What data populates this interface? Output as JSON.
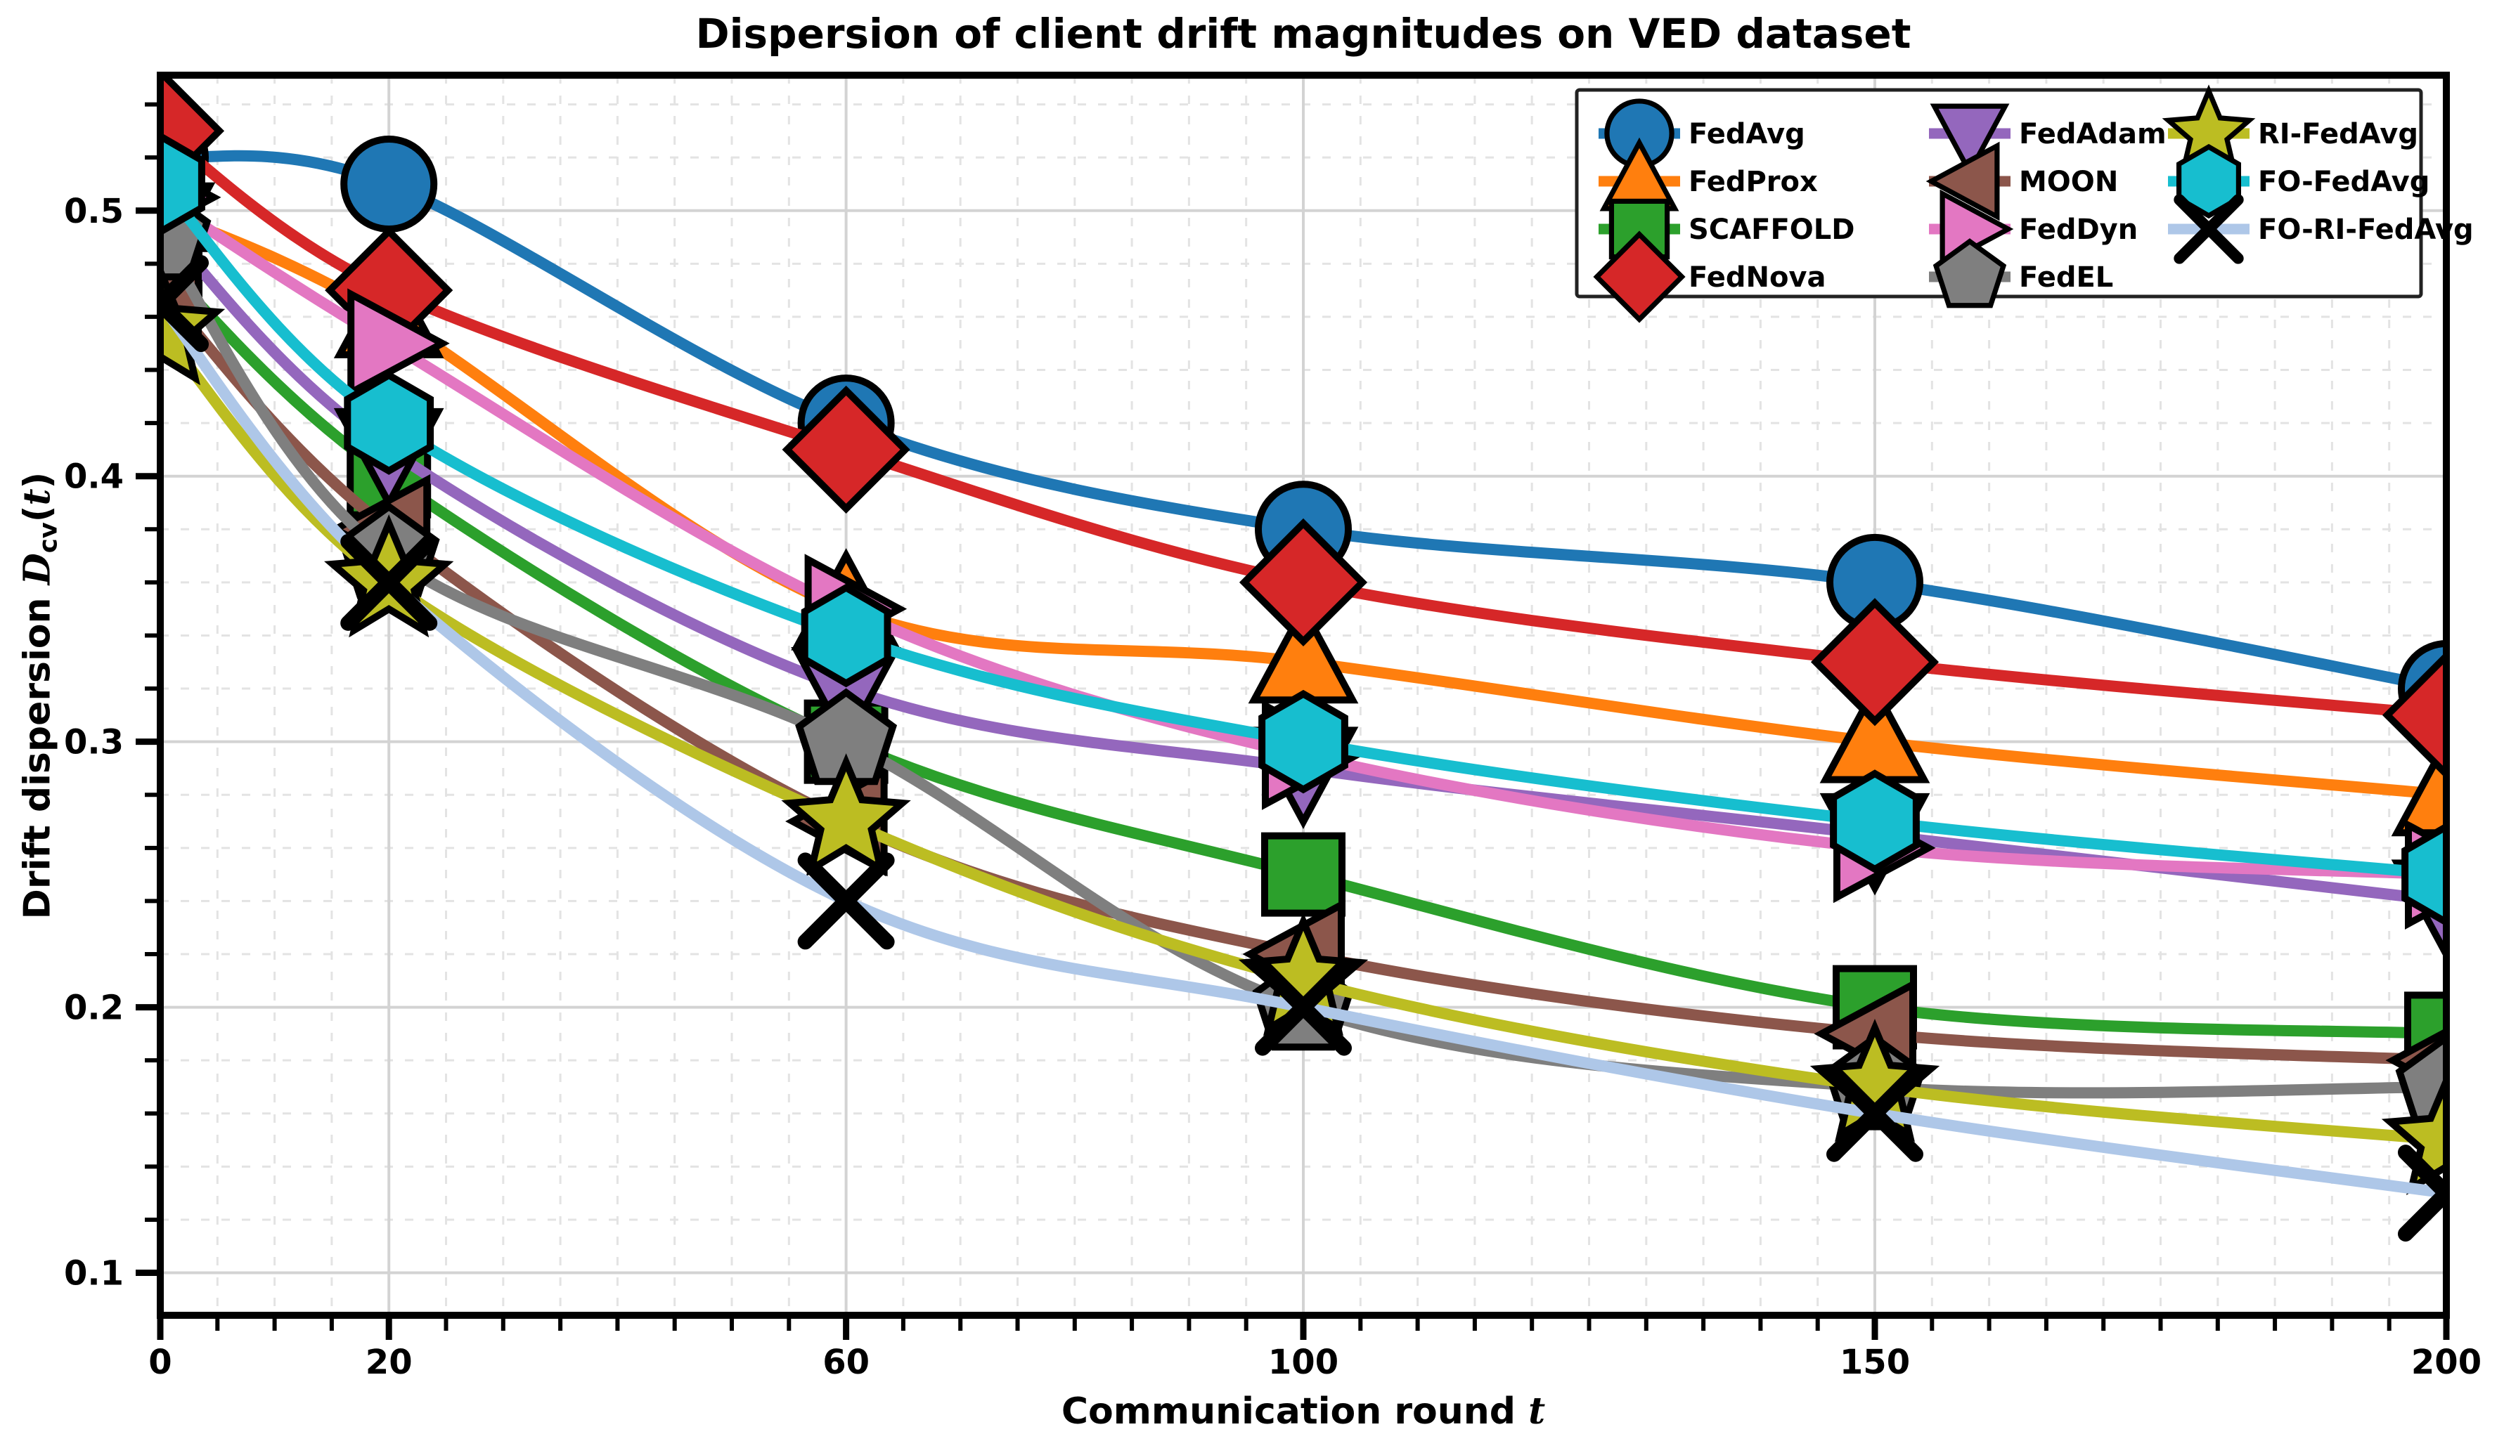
{
  "chart_data": {
    "type": "line",
    "title": "Dispersion of client drift magnitudes on VED dataset",
    "xlabel_parts": {
      "prefix": "Communication round",
      "var": "t"
    },
    "ylabel_parts": {
      "prefix": "Drift dispersion",
      "var": "D",
      "sub": "cv",
      "open": "(",
      "tvar": "t",
      "close": ")"
    },
    "x": [
      0,
      20,
      60,
      100,
      150,
      200
    ],
    "xticks": [
      0,
      20,
      60,
      100,
      150,
      200
    ],
    "yticks": [
      0.1,
      0.2,
      0.3,
      0.4,
      0.5
    ],
    "xlim": [
      0,
      200
    ],
    "ylim": [
      0.084,
      0.551
    ],
    "grid": {
      "y_minor_step": 0.02,
      "x_minor_step": 5,
      "major_on": true,
      "minor_on": true
    },
    "legend_position": "upper right",
    "series": [
      {
        "name": "FedAvg",
        "color": "#1f77b4",
        "marker": "circle",
        "values": [
          0.52,
          0.51,
          0.42,
          0.38,
          0.36,
          0.32
        ]
      },
      {
        "name": "FedProx",
        "color": "#ff7f0e",
        "marker": "triangle-up",
        "values": [
          0.5,
          0.46,
          0.35,
          0.33,
          0.3,
          0.28
        ]
      },
      {
        "name": "SCAFFOLD",
        "color": "#2ca02c",
        "marker": "square",
        "values": [
          0.48,
          0.4,
          0.3,
          0.25,
          0.2,
          0.19
        ]
      },
      {
        "name": "FedNova",
        "color": "#d62728",
        "marker": "diamond",
        "values": [
          0.53,
          0.47,
          0.41,
          0.36,
          0.33,
          0.31
        ]
      },
      {
        "name": "FedAdam",
        "color": "#9467bd",
        "marker": "triangle-down",
        "values": [
          0.495,
          0.41,
          0.32,
          0.29,
          0.265,
          0.24
        ]
      },
      {
        "name": "MOON",
        "color": "#8c564b",
        "marker": "triangle-left",
        "values": [
          0.47,
          0.38,
          0.27,
          0.22,
          0.19,
          0.18
        ]
      },
      {
        "name": "FedDyn",
        "color": "#e377c2",
        "marker": "triangle-right",
        "values": [
          0.505,
          0.45,
          0.35,
          0.295,
          0.26,
          0.25
        ]
      },
      {
        "name": "FedEL",
        "color": "#7f7f7f",
        "marker": "pentagon",
        "values": [
          0.49,
          0.37,
          0.3,
          0.2,
          0.17,
          0.17
        ]
      },
      {
        "name": "RI-FedAvg",
        "color": "#bcbd22",
        "marker": "star",
        "values": [
          0.455,
          0.36,
          0.27,
          0.21,
          0.17,
          0.15
        ]
      },
      {
        "name": "FO-FedAvg",
        "color": "#17becf",
        "marker": "hexagon",
        "values": [
          0.51,
          0.42,
          0.34,
          0.3,
          0.27,
          0.25
        ]
      },
      {
        "name": "FO-RI-FedAvg",
        "color": "#aec7e8",
        "marker": "x",
        "values": [
          0.465,
          0.36,
          0.24,
          0.2,
          0.16,
          0.13
        ]
      }
    ],
    "colors": {
      "major_grid": "#d3d3d3",
      "minor_grid": "#e3e3e3",
      "axis": "#000000",
      "marker_edge": "#000000",
      "legend_border": "#222222",
      "legend_bg": "#ffffff"
    }
  }
}
